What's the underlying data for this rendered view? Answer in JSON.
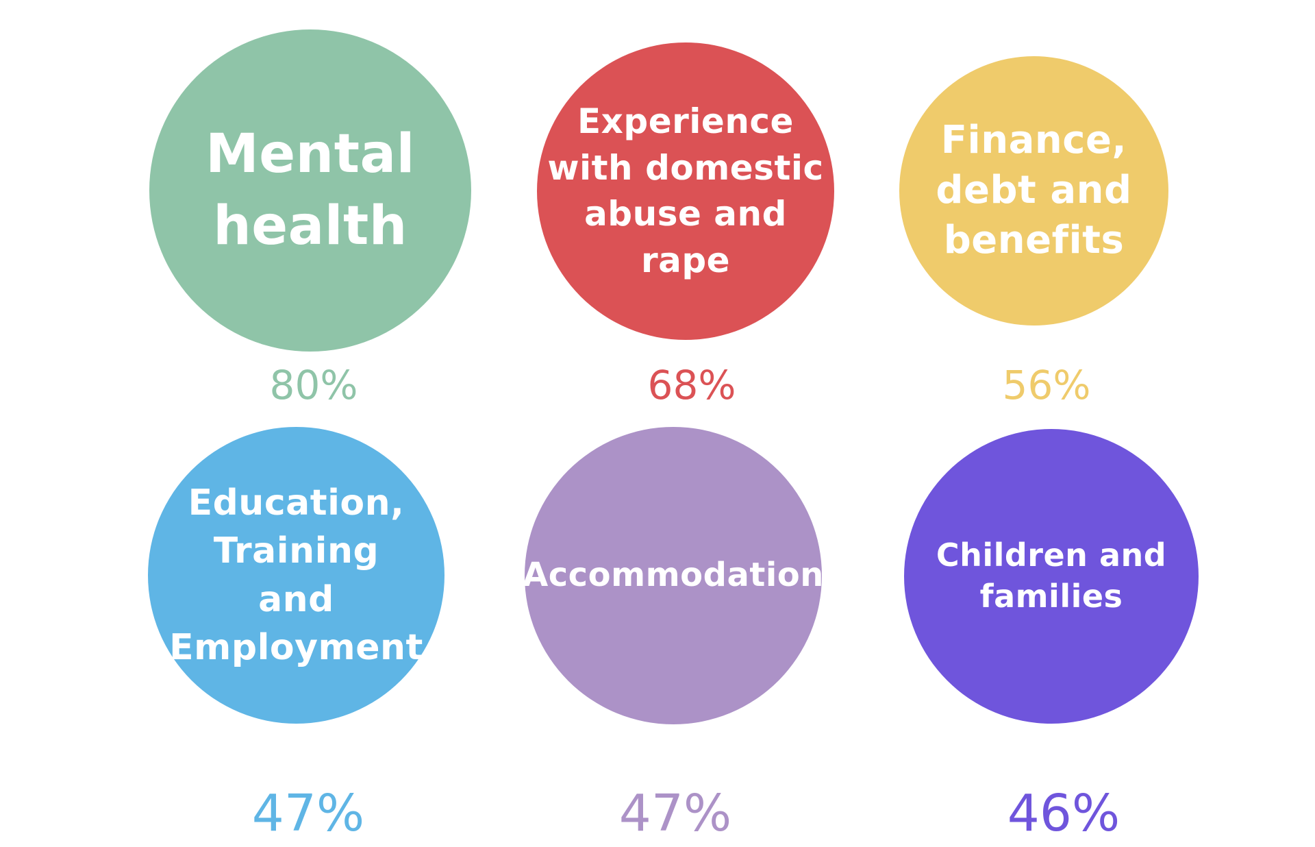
{
  "items": [
    {
      "label": "Mental\nhealth",
      "percent": "80%",
      "circle_color": "#8fc4a8",
      "percent_color": "#8fc4a8"
    },
    {
      "label": "Experience\nwith domestic\nabuse and\nrape",
      "percent": "68%",
      "circle_color": "#db5255",
      "percent_color": "#db5255"
    },
    {
      "label": "Finance,\ndebt and\nbenefits",
      "percent": "56%",
      "circle_color": "#efcb6b",
      "percent_color": "#efcb6b"
    },
    {
      "label": "Education,\nTraining\nand\nEmployment",
      "percent": "47%",
      "circle_color": "#5fb5e5",
      "percent_color": "#5fb5e5"
    },
    {
      "label": "Accommodation",
      "percent": "47%",
      "circle_color": "#ac92c7",
      "percent_color": "#ac92c7"
    },
    {
      "label": "Children and\nfamilies",
      "percent": "46%",
      "circle_color": "#6f55dc",
      "percent_color": "#6f55dc"
    }
  ]
}
